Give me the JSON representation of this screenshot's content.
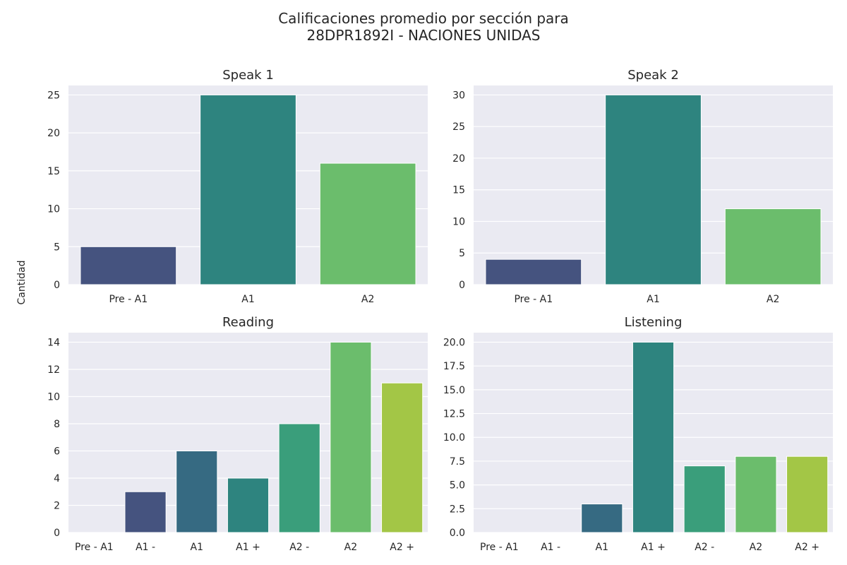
{
  "figure": {
    "title_line1": "Calificaciones promedio por sección para",
    "title_line2": "28DPR1892I - NACIONES UNIDAS",
    "ylabel": "Cantidad"
  },
  "palette": [
    "#443983",
    "#31688e",
    "#21918c",
    "#35b779",
    "#6ece58",
    "#a5c73f",
    "#3d4d80",
    "#2d8580",
    "#6bbd6c"
  ],
  "chart_data": [
    {
      "type": "bar",
      "title": "Speak 1",
      "categories": [
        "Pre - A1",
        "A1",
        "A2"
      ],
      "values": [
        5,
        25,
        16
      ],
      "colors": [
        "#45537f",
        "#2e847f",
        "#6bbd6c"
      ],
      "ylim": [
        0,
        26.25
      ],
      "yticks": [
        0,
        5,
        10,
        15,
        20,
        25
      ],
      "grid": true
    },
    {
      "type": "bar",
      "title": "Speak 2",
      "categories": [
        "Pre - A1",
        "A1",
        "A2"
      ],
      "values": [
        4,
        30,
        12
      ],
      "colors": [
        "#45537f",
        "#2e847f",
        "#6bbd6c"
      ],
      "ylim": [
        0,
        31.5
      ],
      "yticks": [
        0,
        5,
        10,
        15,
        20,
        25,
        30
      ],
      "grid": true
    },
    {
      "type": "bar",
      "title": "Reading",
      "categories": [
        "Pre - A1",
        "A1 -",
        "A1",
        "A1 +",
        "A2 -",
        "A2",
        "A2 +"
      ],
      "values": [
        0,
        3,
        6,
        4,
        8,
        14,
        11
      ],
      "colors": [
        "#45537f",
        "#45537f",
        "#366a82",
        "#2e847f",
        "#3a9e7b",
        "#6bbd6c",
        "#a3c646"
      ],
      "ylim": [
        0,
        14.7
      ],
      "yticks": [
        0,
        2,
        4,
        6,
        8,
        10,
        12,
        14
      ],
      "grid": true
    },
    {
      "type": "bar",
      "title": "Listening",
      "categories": [
        "Pre - A1",
        "A1 -",
        "A1",
        "A1 +",
        "A2 -",
        "A2",
        "A2 +"
      ],
      "values": [
        0,
        0,
        3,
        20,
        7,
        8,
        8
      ],
      "colors": [
        "#45537f",
        "#45537f",
        "#366a82",
        "#2e847f",
        "#3a9e7b",
        "#6bbd6c",
        "#a3c646"
      ],
      "ylim": [
        0,
        21
      ],
      "yticks": [
        "0.0",
        "2.5",
        "5.0",
        "7.5",
        "10.0",
        "12.5",
        "15.0",
        "17.5",
        "20.0"
      ],
      "grid": true
    }
  ]
}
